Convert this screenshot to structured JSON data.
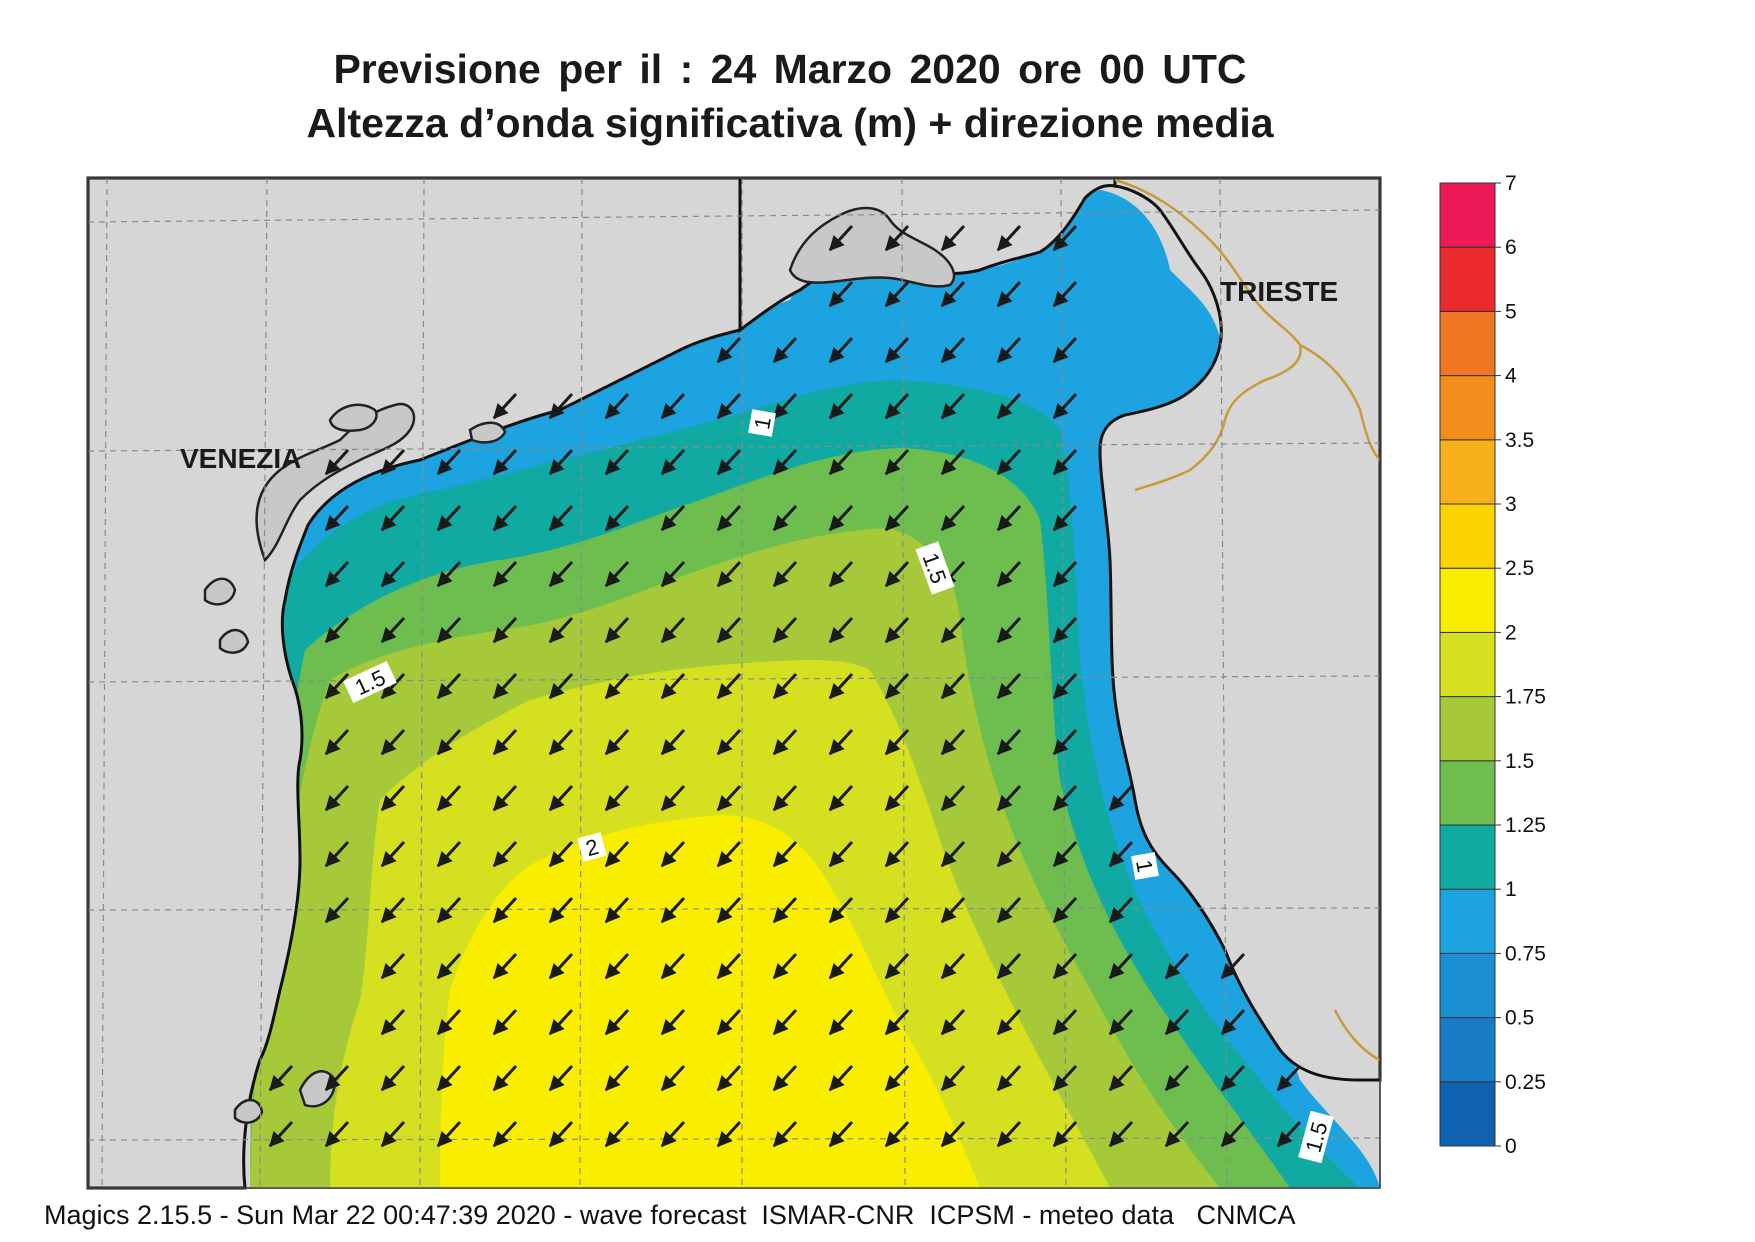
{
  "title": {
    "line1": "Previsione per il  :  24   Marzo   2020   ore 00 UTC",
    "line2": "Altezza d’onda significativa (m) + direzione media"
  },
  "places": {
    "venezia": "VENEZIA",
    "trieste": "TRIESTE"
  },
  "contour_labels": {
    "l1_north": "1",
    "l15_center": "1.5",
    "l15_west": "1.5",
    "l2_south": "2",
    "l1_east": "1",
    "l15_southeast": "1.5"
  },
  "legend": {
    "ticks": [
      "0",
      "0.25",
      "0.5",
      "0.75",
      "1",
      "1.25",
      "1.5",
      "1.75",
      "2",
      "2.5",
      "3",
      "3.5",
      "4",
      "5",
      "6",
      "7"
    ],
    "colors": [
      "#0f62b0",
      "#1a7cc4",
      "#1a8fd2",
      "#1da3e0",
      "#10aaa2",
      "#6ebd4f",
      "#a6c93a",
      "#d5e020",
      "#f9ee00",
      "#fbd300",
      "#f8b01a",
      "#f38e1d",
      "#ef7622",
      "#ea2a2c",
      "#ec1a56"
    ]
  },
  "colors": {
    "land": "#d6d6d6",
    "border": "#c99a3a",
    "grid": "#8a8a8a"
  },
  "arrow_direction": "south-west",
  "footer": "Magics 2.15.5 - Sun Mar 22 00:47:39 2020 - wave forecast  ISMAR-CNR  ICPSM - meteo data   CNMCA"
}
